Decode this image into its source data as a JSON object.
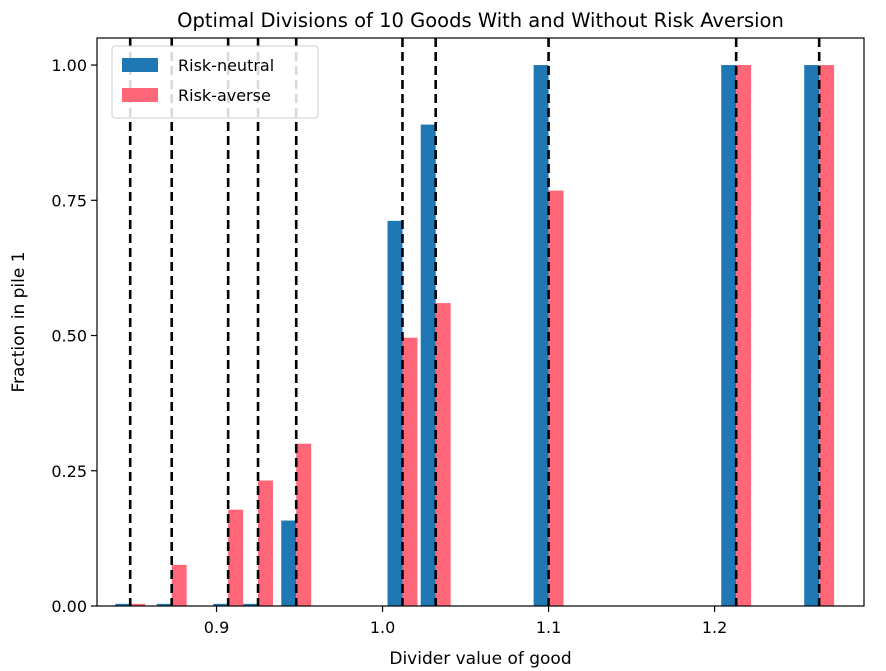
{
  "chart_data": {
    "type": "bar",
    "title": "Optimal Divisions of 10 Goods With and Without Risk Aversion",
    "xlabel": "Divider value of good",
    "ylabel": "Fraction in pile 1",
    "xlim": [
      0.828,
      1.29
    ],
    "ylim": [
      0,
      1.05
    ],
    "xticks": [
      0.9,
      1.0,
      1.1,
      1.2
    ],
    "xtick_labels": [
      "0.9",
      "1.0",
      "1.1",
      "1.2"
    ],
    "yticks": [
      0,
      0.25,
      0.5,
      0.75,
      1.0
    ],
    "ytick_labels": [
      "0.00",
      "0.25",
      "0.50",
      "0.75",
      "1.00"
    ],
    "bar_width": 0.009,
    "dividers": [
      0.848,
      0.873,
      0.907,
      0.925,
      0.948,
      1.012,
      1.032,
      1.1,
      1.213,
      1.263
    ],
    "series": [
      {
        "name": "Risk-neutral",
        "color": "#1f77b4",
        "values": [
          0.004,
          0.004,
          0.004,
          0.004,
          0.158,
          0.712,
          0.89,
          1.0,
          1.0,
          1.0
        ]
      },
      {
        "name": "Risk-averse",
        "color": "#ff6677",
        "values": [
          0.004,
          0.076,
          0.178,
          0.232,
          0.3,
          0.496,
          0.56,
          0.768,
          1.0,
          1.0
        ]
      }
    ],
    "divider_style": "dashed black vertical line",
    "grid": false,
    "legend": "top-left"
  }
}
